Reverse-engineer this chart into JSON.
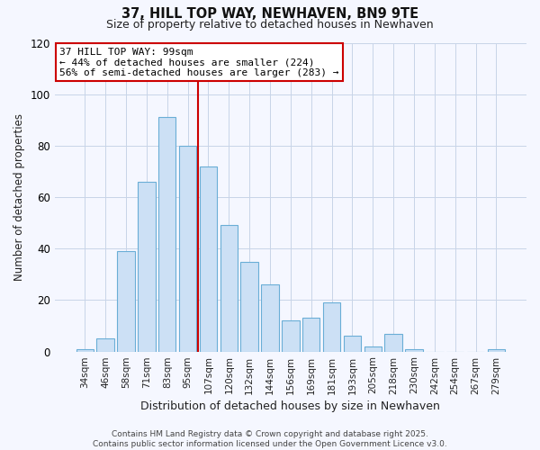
{
  "title": "37, HILL TOP WAY, NEWHAVEN, BN9 9TE",
  "subtitle": "Size of property relative to detached houses in Newhaven",
  "xlabel": "Distribution of detached houses by size in Newhaven",
  "ylabel": "Number of detached properties",
  "bar_labels": [
    "34sqm",
    "46sqm",
    "58sqm",
    "71sqm",
    "83sqm",
    "95sqm",
    "107sqm",
    "120sqm",
    "132sqm",
    "144sqm",
    "156sqm",
    "169sqm",
    "181sqm",
    "193sqm",
    "205sqm",
    "218sqm",
    "230sqm",
    "242sqm",
    "254sqm",
    "267sqm",
    "279sqm"
  ],
  "bar_values": [
    1,
    5,
    39,
    66,
    91,
    80,
    72,
    49,
    35,
    26,
    12,
    13,
    19,
    6,
    2,
    7,
    1,
    0,
    0,
    0,
    1
  ],
  "bar_color": "#cce0f5",
  "bar_edge_color": "#6aaed6",
  "vline_x": 5.5,
  "vline_color": "#cc0000",
  "annotation_title": "37 HILL TOP WAY: 99sqm",
  "annotation_line1": "← 44% of detached houses are smaller (224)",
  "annotation_line2": "56% of semi-detached houses are larger (283) →",
  "annotation_box_color": "#ffffff",
  "annotation_box_edge": "#cc0000",
  "ylim": [
    0,
    120
  ],
  "yticks": [
    0,
    20,
    40,
    60,
    80,
    100,
    120
  ],
  "footer_line1": "Contains HM Land Registry data © Crown copyright and database right 2025.",
  "footer_line2": "Contains public sector information licensed under the Open Government Licence v3.0.",
  "bg_color": "#f5f7ff",
  "plot_bg_color": "#f5f7ff",
  "grid_color": "#c8d4e8"
}
